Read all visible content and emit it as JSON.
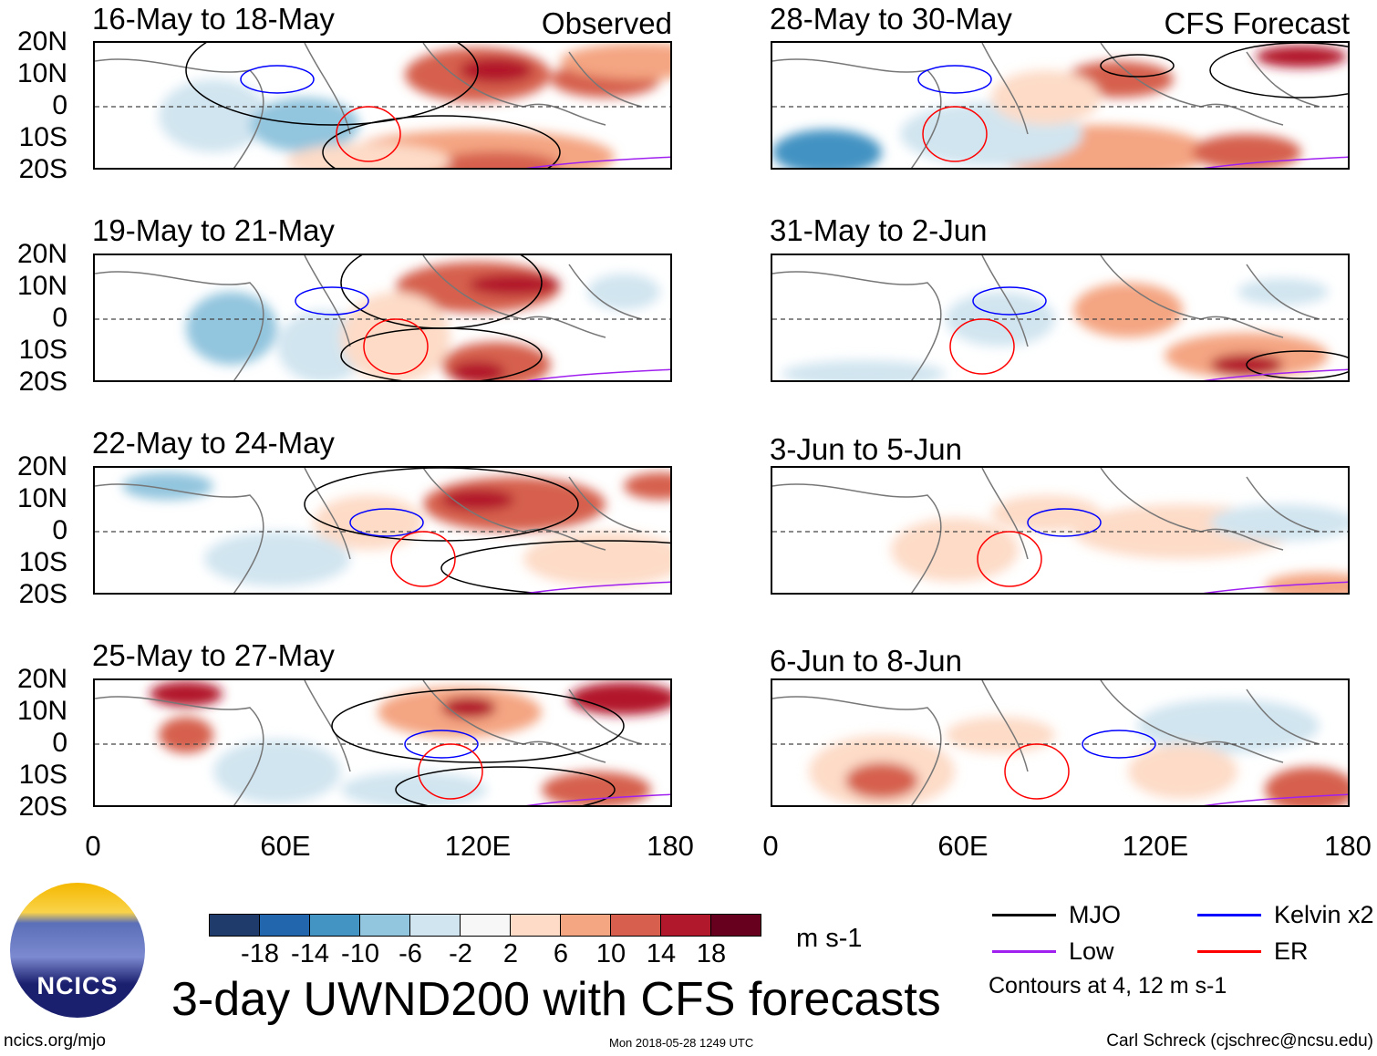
{
  "panels_left": [
    {
      "title": "16-May to 18-May",
      "tag": "Observed"
    },
    {
      "title": "19-May to 21-May"
    },
    {
      "title": "22-May to 24-May"
    },
    {
      "title": "25-May to 27-May"
    }
  ],
  "panels_right": [
    {
      "title": "28-May to 30-May",
      "tag": "CFS Forecast"
    },
    {
      "title": "31-May to 2-Jun"
    },
    {
      "title": "3-Jun to 5-Jun"
    },
    {
      "title": "6-Jun to 8-Jun"
    }
  ],
  "y_ticks": [
    "20N",
    "10N",
    "0",
    "10S",
    "20S"
  ],
  "x_ticks": [
    "0",
    "60E",
    "120E",
    "180"
  ],
  "colorbar": {
    "colors": [
      "#1f3b6b",
      "#2266ad",
      "#4393c3",
      "#92c5de",
      "#d1e5f0",
      "#f7f7f7",
      "#fddbc7",
      "#f4a582",
      "#d6604d",
      "#b2182b",
      "#67001f"
    ],
    "labels": [
      "-18",
      "-14",
      "-10",
      "-6",
      "-2",
      "2",
      "6",
      "10",
      "14",
      "18"
    ],
    "units": "m s-1"
  },
  "legend": {
    "items": [
      {
        "label": "MJO",
        "color": "#000000"
      },
      {
        "label": "Kelvin x2",
        "color": "#0000ff"
      },
      {
        "label": "Low",
        "color": "#a020f0"
      },
      {
        "label": "ER",
        "color": "#ff0000"
      }
    ],
    "note": "Contours at 4, 12 m s-1"
  },
  "title": "3-day UWND200 with CFS forecasts",
  "logo_text": "NCICS",
  "footer": {
    "url": "ncics.org/mjo",
    "timestamp": "Mon 2018-05-28 1249 UTC",
    "author": "Carl Schreck (cjschrec@ncsu.edu)"
  }
}
